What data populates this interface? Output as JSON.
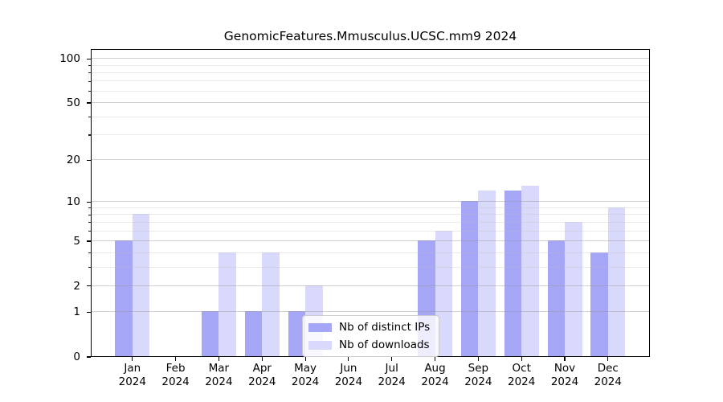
{
  "title": "GenomicFeatures.Mmusculus.UCSC.mm9 2024",
  "chart_data": {
    "type": "bar",
    "yscale": "log1p",
    "title": "GenomicFeatures.Mmusculus.UCSC.mm9 2024",
    "categories": [
      "Jan",
      "Feb",
      "Mar",
      "Apr",
      "May",
      "Jun",
      "Jul",
      "Aug",
      "Sep",
      "Oct",
      "Nov",
      "Dec"
    ],
    "year_label": "2024",
    "series": [
      {
        "name": "Nb of distinct IPs",
        "color": "#a6a6f6",
        "values": [
          5,
          0,
          1,
          1,
          1,
          0,
          0,
          5,
          10,
          12,
          5,
          4
        ]
      },
      {
        "name": "Nb of downloads",
        "color": "#d9d9fb",
        "values": [
          8,
          0,
          4,
          4,
          2,
          0,
          0,
          6,
          12,
          13,
          7,
          9
        ]
      }
    ],
    "xlabel": "",
    "ylabel": "",
    "ylim": [
      0,
      113.5
    ],
    "yticks_major": [
      0,
      1,
      2,
      5,
      10,
      20,
      50,
      100
    ],
    "yticks_minor": [
      3,
      4,
      6,
      7,
      8,
      9,
      30,
      40,
      60,
      70,
      80,
      90
    ],
    "grid": "horizontal",
    "legend_position": "inside lower-center-left"
  },
  "colors": {
    "axis": "#000000",
    "bar_ips": "#a6a6f6",
    "bar_downloads": "#d9d9fb",
    "grid_major": "#cfcfcf",
    "grid_minor": "#ececec",
    "legend_border": "#cccccc",
    "background": "#ffffff"
  }
}
